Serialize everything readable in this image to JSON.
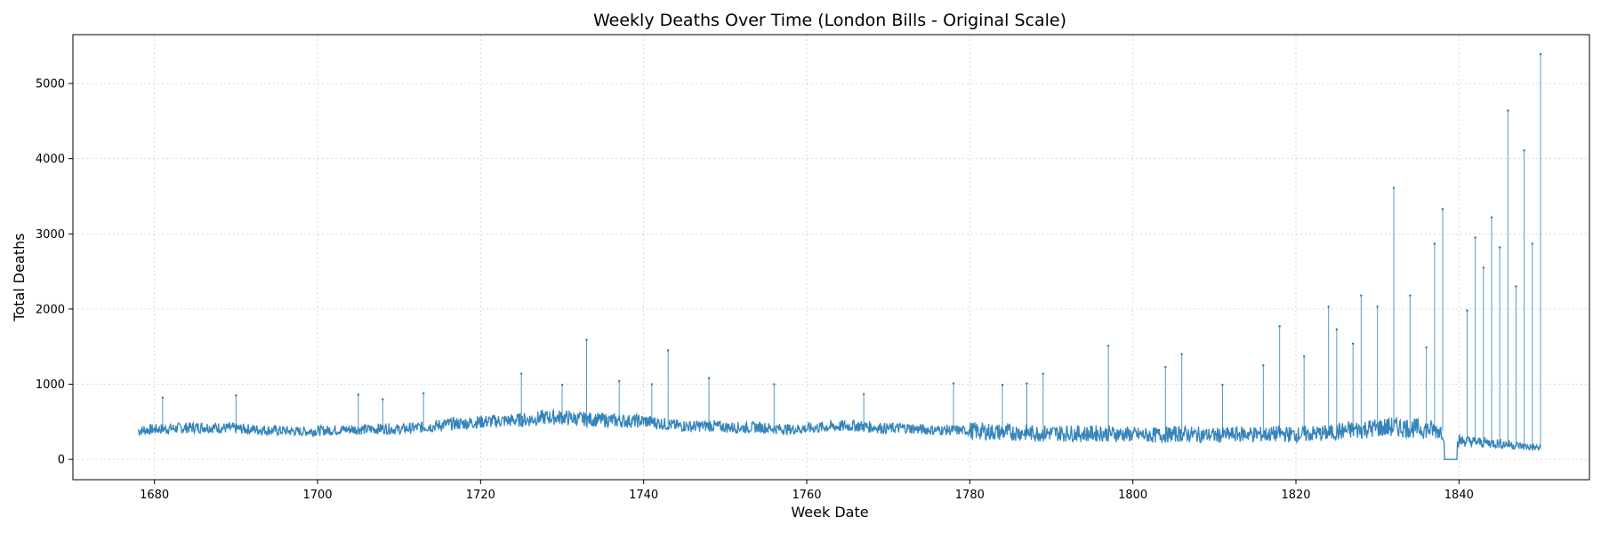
{
  "chart_data": {
    "type": "line",
    "title": "Weekly Deaths Over Time (London Bills - Original Scale)",
    "xlabel": "Week Date",
    "ylabel": "Total Deaths",
    "xlim": [
      1670,
      1856
    ],
    "ylim": [
      -270,
      5650
    ],
    "x_ticks": [
      1680,
      1700,
      1720,
      1740,
      1760,
      1780,
      1800,
      1820,
      1840
    ],
    "y_ticks": [
      0,
      1000,
      2000,
      3000,
      4000,
      5000
    ],
    "grid": true,
    "line_color": "#1f77b4",
    "series": [
      {
        "x": [
          1678,
          1680,
          1682,
          1684,
          1686,
          1688,
          1690,
          1692,
          1694,
          1696,
          1698,
          1700,
          1702,
          1704,
          1706,
          1708,
          1710,
          1712,
          1714,
          1716,
          1718,
          1720,
          1722,
          1724,
          1726,
          1728,
          1730,
          1732,
          1734,
          1736,
          1738,
          1740,
          1742,
          1744,
          1746,
          1748,
          1750,
          1752,
          1754,
          1756,
          1758,
          1760,
          1762,
          1764,
          1766,
          1768,
          1770,
          1772,
          1774,
          1776,
          1778,
          1780,
          1782,
          1784,
          1786,
          1788,
          1790,
          1792,
          1794,
          1796,
          1798,
          1800,
          1802,
          1804,
          1806,
          1808,
          1810,
          1812,
          1814,
          1816,
          1818,
          1820,
          1822,
          1824,
          1826,
          1828,
          1830,
          1832,
          1834,
          1836,
          1838,
          1839,
          1840,
          1842,
          1844,
          1846,
          1848,
          1850
        ],
        "values": [
          380,
          400,
          410,
          420,
          430,
          420,
          410,
          400,
          390,
          380,
          370,
          380,
          390,
          400,
          400,
          410,
          400,
          420,
          440,
          470,
          480,
          500,
          510,
          520,
          530,
          560,
          560,
          540,
          530,
          520,
          510,
          510,
          480,
          450,
          440,
          450,
          430,
          420,
          430,
          410,
          400,
          410,
          430,
          440,
          450,
          430,
          410,
          420,
          400,
          390,
          390,
          380,
          370,
          360,
          360,
          350,
          350,
          350,
          340,
          350,
          340,
          330,
          320,
          330,
          340,
          330,
          320,
          330,
          340,
          330,
          340,
          330,
          340,
          350,
          380,
          400,
          420,
          430,
          420,
          400,
          380,
          0,
          250,
          230,
          220,
          200,
          170,
          150
        ]
      },
      {
        "name": "",
        "x": [
          1681,
          1690,
          1705,
          1708,
          1713,
          1725,
          1730,
          1733,
          1737,
          1741,
          1743,
          1748,
          1756,
          1767,
          1778,
          1784,
          1787,
          1789,
          1797,
          1804,
          1806,
          1811,
          1816,
          1818,
          1821,
          1824,
          1825,
          1827,
          1828,
          1830,
          1832,
          1834,
          1836,
          1837,
          1838,
          1841,
          1842,
          1843,
          1844,
          1845,
          1846,
          1847,
          1848,
          1849,
          1850
        ],
        "values": [
          820,
          850,
          860,
          800,
          880,
          1140,
          990,
          1590,
          1040,
          1000,
          1450,
          1080,
          1000,
          870,
          1010,
          990,
          1010,
          1140,
          1510,
          1230,
          1400,
          990,
          1250,
          1770,
          1370,
          2030,
          1730,
          1540,
          2180,
          2030,
          3610,
          2180,
          1490,
          2870,
          3330,
          1980,
          2950,
          2550,
          3220,
          2820,
          4640,
          2300,
          4110,
          2870,
          5390
        ]
      }
    ]
  }
}
